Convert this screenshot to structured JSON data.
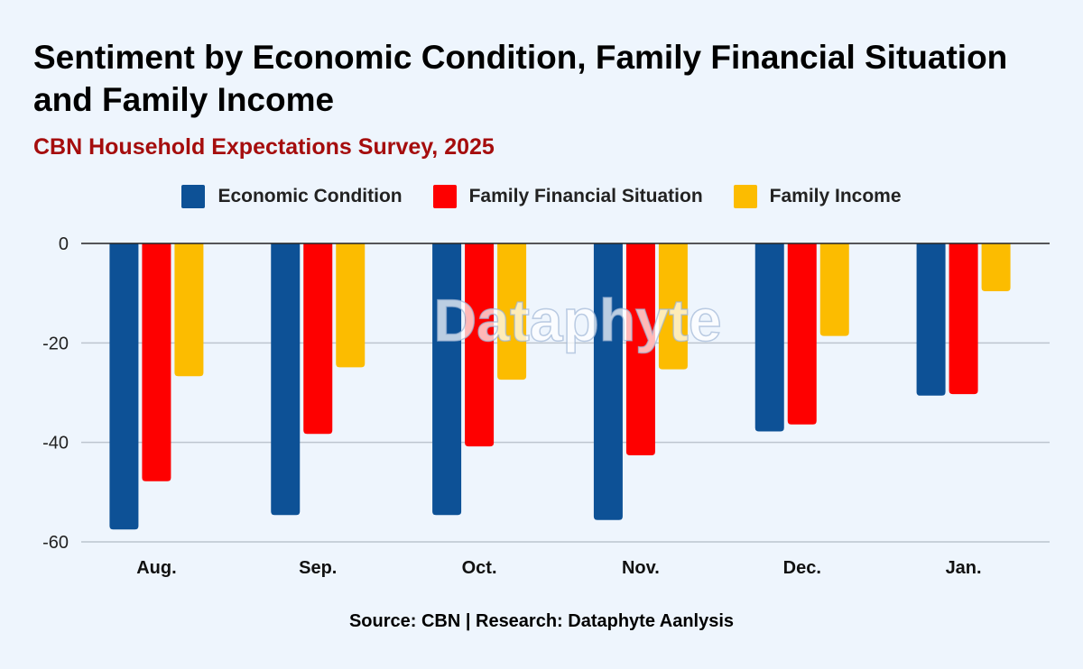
{
  "title": "Sentiment by Economic Condition, Family Financial Situation and Family Income",
  "subtitle": "CBN Household Expectations Survey, 2025",
  "source": "Source: CBN | Research: Dataphyte Aanlysis",
  "watermark": "Dataphyte",
  "colors": {
    "economic": "#0d5196",
    "family_financial": "#fe0000",
    "family_income": "#fcbc00",
    "title": "#000000",
    "subtitle": "#a50d0d",
    "background": "#eef5fd",
    "grid": "#bcc5cf"
  },
  "chart_data": {
    "type": "bar",
    "title": "Sentiment by Economic Condition, Family Financial Situation and Family Income",
    "subtitle": "CBN Household Expectations Survey, 2025",
    "xlabel": "",
    "ylabel": "",
    "ylim": [
      -60,
      0
    ],
    "yticks": [
      "0",
      "-20",
      "-40",
      "-60"
    ],
    "yticks_values": [
      0,
      -20,
      -40,
      -60
    ],
    "grid": true,
    "legend_position": "top",
    "categories": [
      "Aug.",
      "Sep.",
      "Oct.",
      "Nov.",
      "Dec.",
      "Jan."
    ],
    "series": [
      {
        "name": "Economic Condition",
        "values": [
          -57.5,
          -54.6,
          -54.6,
          -55.6,
          -37.8,
          -30.6
        ]
      },
      {
        "name": "Family Financial Situation",
        "values": [
          -47.8,
          -38.3,
          -40.8,
          -42.6,
          -36.4,
          -30.3
        ]
      },
      {
        "name": "Family Income",
        "values": [
          -26.7,
          -24.9,
          -27.4,
          -25.3,
          -18.6,
          -9.6
        ]
      }
    ]
  }
}
